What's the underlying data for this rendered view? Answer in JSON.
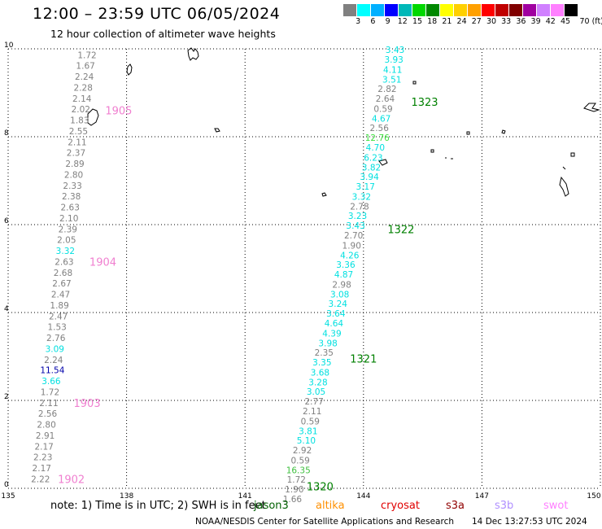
{
  "title": "12:00 – 23:59 UTC 06/05/2024",
  "subtitle": "12 hour collection of altimeter wave heights",
  "colorbar": {
    "colors": [
      "#808080",
      "#00ffff",
      "#00b0ff",
      "#0000ff",
      "#00b8b8",
      "#00d800",
      "#008800",
      "#ffff00",
      "#ffd000",
      "#ffa000",
      "#ff0000",
      "#c00000",
      "#800000",
      "#a000a0",
      "#d080ff",
      "#ff80ff",
      "#000000"
    ],
    "labels": [
      "3",
      "6",
      "9",
      "12",
      "15",
      "18",
      "21",
      "24",
      "27",
      "30",
      "33",
      "36",
      "39",
      "42",
      "45",
      "70 (ft)"
    ]
  },
  "axes": {
    "x_ticks": [
      "135",
      "138",
      "141",
      "144",
      "147",
      "150"
    ],
    "y_ticks": [
      "0",
      "2",
      "4",
      "6",
      "8",
      "10"
    ]
  },
  "chart_data": {
    "type": "scatter",
    "xlim": [
      135,
      150
    ],
    "ylim": [
      0,
      10
    ],
    "x_ticks": [
      135,
      138,
      141,
      144,
      147,
      150
    ],
    "y_ticks": [
      0,
      2,
      4,
      6,
      8,
      10
    ],
    "grid": true,
    "tracks": [
      {
        "id": "west",
        "points": [
          {
            "x": 137.0,
            "y": 9.86,
            "v": "1.72",
            "c": "#808080"
          },
          {
            "x": 136.96,
            "y": 9.62,
            "v": "1.67",
            "c": "#808080"
          },
          {
            "x": 136.93,
            "y": 9.37,
            "v": "2.24",
            "c": "#808080"
          },
          {
            "x": 136.9,
            "y": 9.12,
            "v": "2.28",
            "c": "#808080"
          },
          {
            "x": 136.87,
            "y": 8.87,
            "v": "2.14",
            "c": "#808080"
          },
          {
            "x": 136.84,
            "y": 8.63,
            "v": "2.02",
            "c": "#808080"
          },
          {
            "x": 136.81,
            "y": 8.38,
            "v": "1.83",
            "c": "#808080"
          },
          {
            "x": 136.78,
            "y": 8.13,
            "v": "2.55",
            "c": "#808080"
          },
          {
            "x": 136.75,
            "y": 7.88,
            "v": "2.11",
            "c": "#808080"
          },
          {
            "x": 136.72,
            "y": 7.64,
            "v": "2.37",
            "c": "#808080"
          },
          {
            "x": 136.69,
            "y": 7.39,
            "v": "2.89",
            "c": "#808080"
          },
          {
            "x": 136.66,
            "y": 7.14,
            "v": "2.80",
            "c": "#808080"
          },
          {
            "x": 136.63,
            "y": 6.89,
            "v": "2.33",
            "c": "#808080"
          },
          {
            "x": 136.6,
            "y": 6.65,
            "v": "2.38",
            "c": "#808080"
          },
          {
            "x": 136.57,
            "y": 6.4,
            "v": "2.63",
            "c": "#808080"
          },
          {
            "x": 136.54,
            "y": 6.15,
            "v": "2.10",
            "c": "#808080"
          },
          {
            "x": 136.51,
            "y": 5.9,
            "v": "2.39",
            "c": "#808080"
          },
          {
            "x": 136.48,
            "y": 5.66,
            "v": "2.05",
            "c": "#808080"
          },
          {
            "x": 136.45,
            "y": 5.41,
            "v": "3.32",
            "c": "#00e0e0"
          },
          {
            "x": 136.42,
            "y": 5.16,
            "v": "2.63",
            "c": "#808080"
          },
          {
            "x": 136.39,
            "y": 4.91,
            "v": "2.68",
            "c": "#808080"
          },
          {
            "x": 136.36,
            "y": 4.67,
            "v": "2.67",
            "c": "#808080"
          },
          {
            "x": 136.33,
            "y": 4.42,
            "v": "2.47",
            "c": "#808080"
          },
          {
            "x": 136.3,
            "y": 4.17,
            "v": "1.89",
            "c": "#808080"
          },
          {
            "x": 136.27,
            "y": 3.92,
            "v": "2.47",
            "c": "#808080"
          },
          {
            "x": 136.24,
            "y": 3.68,
            "v": "1.53",
            "c": "#808080"
          },
          {
            "x": 136.21,
            "y": 3.43,
            "v": "2.76",
            "c": "#808080"
          },
          {
            "x": 136.18,
            "y": 3.18,
            "v": "3.09",
            "c": "#00e0e0"
          },
          {
            "x": 136.15,
            "y": 2.93,
            "v": "2.24",
            "c": "#808080"
          },
          {
            "x": 136.12,
            "y": 2.69,
            "v": "11.54",
            "c": "#0000aa"
          },
          {
            "x": 136.09,
            "y": 2.44,
            "v": "3.66",
            "c": "#00e0e0"
          },
          {
            "x": 136.06,
            "y": 2.19,
            "v": "1.72",
            "c": "#808080"
          },
          {
            "x": 136.03,
            "y": 1.94,
            "v": "2.11",
            "c": "#808080"
          },
          {
            "x": 136.0,
            "y": 1.7,
            "v": "2.56",
            "c": "#808080"
          },
          {
            "x": 135.97,
            "y": 1.45,
            "v": "2.80",
            "c": "#808080"
          },
          {
            "x": 135.94,
            "y": 1.2,
            "v": "2.91",
            "c": "#808080"
          },
          {
            "x": 135.91,
            "y": 0.95,
            "v": "2.17",
            "c": "#808080"
          },
          {
            "x": 135.88,
            "y": 0.71,
            "v": "2.23",
            "c": "#808080"
          },
          {
            "x": 135.85,
            "y": 0.46,
            "v": "2.17",
            "c": "#808080"
          },
          {
            "x": 135.82,
            "y": 0.21,
            "v": "2.22",
            "c": "#808080"
          }
        ],
        "labels": [
          {
            "x": 137.8,
            "y": 8.6,
            "text": "1905",
            "c": "#f080d0"
          },
          {
            "x": 137.4,
            "y": 5.16,
            "text": "1904",
            "c": "#f080d0"
          },
          {
            "x": 137.0,
            "y": 1.94,
            "text": "1903",
            "c": "#f080d0"
          },
          {
            "x": 136.6,
            "y": 0.21,
            "text": "1902",
            "c": "#f080d0"
          }
        ]
      },
      {
        "id": "east",
        "points": [
          {
            "x": 144.8,
            "y": 9.98,
            "v": "3.43",
            "c": "#00e0e0"
          },
          {
            "x": 144.77,
            "y": 9.76,
            "v": "3.93",
            "c": "#00e0e0"
          },
          {
            "x": 144.74,
            "y": 9.53,
            "v": "4.11",
            "c": "#00e0e0"
          },
          {
            "x": 144.72,
            "y": 9.31,
            "v": "3.51",
            "c": "#00e0e0"
          },
          {
            "x": 144.6,
            "y": 9.09,
            "v": "2.82",
            "c": "#808080"
          },
          {
            "x": 144.55,
            "y": 8.87,
            "v": "2.64",
            "c": "#808080"
          },
          {
            "x": 144.5,
            "y": 8.64,
            "v": "0.59",
            "c": "#808080"
          },
          {
            "x": 144.45,
            "y": 8.42,
            "v": "4.67",
            "c": "#00e0e0"
          },
          {
            "x": 144.4,
            "y": 8.2,
            "v": "2.56",
            "c": "#808080"
          },
          {
            "x": 144.35,
            "y": 7.98,
            "v": "12.76",
            "c": "#40e040"
          },
          {
            "x": 144.3,
            "y": 7.76,
            "v": "4.70",
            "c": "#00e0e0"
          },
          {
            "x": 144.25,
            "y": 7.53,
            "v": "6.23",
            "c": "#00e0e0"
          },
          {
            "x": 144.2,
            "y": 7.31,
            "v": "3.82",
            "c": "#00e0e0"
          },
          {
            "x": 144.15,
            "y": 7.09,
            "v": "3.94",
            "c": "#00e0e0"
          },
          {
            "x": 144.05,
            "y": 6.87,
            "v": "3.17",
            "c": "#00e0e0"
          },
          {
            "x": 143.95,
            "y": 6.64,
            "v": "3.32",
            "c": "#00e0e0"
          },
          {
            "x": 143.9,
            "y": 6.42,
            "v": "2.78",
            "c": "#808080"
          },
          {
            "x": 143.85,
            "y": 6.2,
            "v": "3.23",
            "c": "#00e0e0"
          },
          {
            "x": 143.8,
            "y": 5.98,
            "v": "3.43",
            "c": "#00e0e0"
          },
          {
            "x": 143.75,
            "y": 5.76,
            "v": "2.70",
            "c": "#808080"
          },
          {
            "x": 143.7,
            "y": 5.53,
            "v": "1.90",
            "c": "#808080"
          },
          {
            "x": 143.65,
            "y": 5.31,
            "v": "4.26",
            "c": "#00e0e0"
          },
          {
            "x": 143.55,
            "y": 5.09,
            "v": "3.36",
            "c": "#00e0e0"
          },
          {
            "x": 143.5,
            "y": 4.87,
            "v": "4.87",
            "c": "#00e0e0"
          },
          {
            "x": 143.45,
            "y": 4.64,
            "v": "2.98",
            "c": "#808080"
          },
          {
            "x": 143.4,
            "y": 4.42,
            "v": "3.08",
            "c": "#00e0e0"
          },
          {
            "x": 143.35,
            "y": 4.2,
            "v": "3.24",
            "c": "#00e0e0"
          },
          {
            "x": 143.3,
            "y": 3.98,
            "v": "3.64",
            "c": "#00e0e0"
          },
          {
            "x": 143.25,
            "y": 3.76,
            "v": "4.64",
            "c": "#00e0e0"
          },
          {
            "x": 143.2,
            "y": 3.53,
            "v": "4.39",
            "c": "#00e0e0"
          },
          {
            "x": 143.1,
            "y": 3.31,
            "v": "3.98",
            "c": "#00e0e0"
          },
          {
            "x": 143.0,
            "y": 3.09,
            "v": "2.35",
            "c": "#808080"
          },
          {
            "x": 142.95,
            "y": 2.87,
            "v": "3.35",
            "c": "#00e0e0"
          },
          {
            "x": 142.9,
            "y": 2.64,
            "v": "3.68",
            "c": "#00e0e0"
          },
          {
            "x": 142.85,
            "y": 2.42,
            "v": "3.28",
            "c": "#00e0e0"
          },
          {
            "x": 142.8,
            "y": 2.2,
            "v": "3.05",
            "c": "#00e0e0"
          },
          {
            "x": 142.75,
            "y": 1.98,
            "v": "2.77",
            "c": "#808080"
          },
          {
            "x": 142.7,
            "y": 1.76,
            "v": "2.11",
            "c": "#808080"
          },
          {
            "x": 142.65,
            "y": 1.53,
            "v": "0.59",
            "c": "#808080"
          },
          {
            "x": 142.6,
            "y": 1.31,
            "v": "3.81",
            "c": "#00e0e0"
          },
          {
            "x": 142.55,
            "y": 1.09,
            "v": "5.10",
            "c": "#00e0e0"
          },
          {
            "x": 142.45,
            "y": 0.87,
            "v": "2.92",
            "c": "#808080"
          },
          {
            "x": 142.4,
            "y": 0.64,
            "v": "0.59",
            "c": "#808080"
          },
          {
            "x": 142.35,
            "y": 0.42,
            "v": "16.35",
            "c": "#40c040"
          },
          {
            "x": 142.3,
            "y": 0.2,
            "v": "1.72",
            "c": "#808080"
          },
          {
            "x": 142.25,
            "y": -0.02,
            "v": "1.90",
            "c": "#808080"
          },
          {
            "x": 142.2,
            "y": -0.24,
            "v": "1.66",
            "c": "#808080"
          }
        ],
        "labels": [
          {
            "x": 145.55,
            "y": 8.8,
            "text": "1323",
            "c": "#008000"
          },
          {
            "x": 144.95,
            "y": 5.9,
            "text": "1322",
            "c": "#008000"
          },
          {
            "x": 144.0,
            "y": 2.95,
            "text": "1321",
            "c": "#008000"
          },
          {
            "x": 142.9,
            "y": 0.05,
            "text": "1320",
            "c": "#008000"
          }
        ]
      }
    ]
  },
  "footer": {
    "note": "note:  1) Time is in UTC; 2) SWH is in feet",
    "satellites": [
      {
        "name": "jason3",
        "color": "#006000"
      },
      {
        "name": "altika",
        "color": "#ff9000"
      },
      {
        "name": "cryosat",
        "color": "#e00000"
      },
      {
        "name": "s3a",
        "color": "#900000"
      },
      {
        "name": "s3b",
        "color": "#b090ff"
      },
      {
        "name": "swot",
        "color": "#ff80ff"
      }
    ],
    "credit": "NOAA/NESDIS Center for Satellite Applications and Research",
    "generated": "14 Dec 13:27:53 UTC 2024"
  }
}
